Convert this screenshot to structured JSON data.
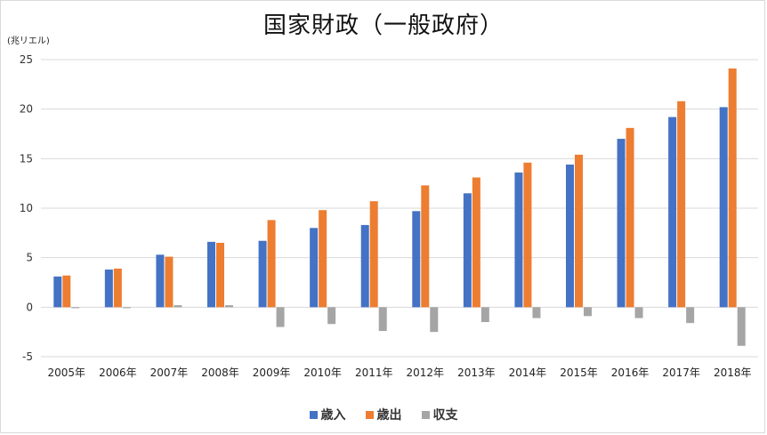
{
  "chart_data": {
    "type": "bar",
    "title": "国家財政（一般政府）",
    "unit_label": "(兆リエル)",
    "categories": [
      "2005年",
      "2006年",
      "2007年",
      "2008年",
      "2009年",
      "2010年",
      "2011年",
      "2012年",
      "2013年",
      "2014年",
      "2015年",
      "2016年",
      "2017年",
      "2018年"
    ],
    "series": [
      {
        "name": "歳入",
        "color": "#4472c4",
        "values": [
          3.1,
          3.8,
          5.3,
          6.6,
          6.7,
          8.0,
          8.3,
          9.7,
          11.5,
          13.6,
          14.4,
          17.0,
          19.2,
          20.2
        ]
      },
      {
        "name": "歳出",
        "color": "#ed7d31",
        "values": [
          3.2,
          3.9,
          5.1,
          6.5,
          8.8,
          9.8,
          10.7,
          12.3,
          13.1,
          14.6,
          15.4,
          18.1,
          20.8,
          24.1
        ]
      },
      {
        "name": "収支",
        "color": "#a5a5a5",
        "values": [
          -0.1,
          -0.1,
          0.2,
          0.2,
          -2.0,
          -1.7,
          -2.4,
          -2.5,
          -1.5,
          -1.1,
          -0.9,
          -1.1,
          -1.6,
          -3.9
        ]
      }
    ],
    "yticks": [
      "25",
      "20",
      "15",
      "10",
      "5",
      "0",
      "-5"
    ],
    "ylim": [
      -5,
      25
    ],
    "grid": true,
    "legend_position": "bottom"
  }
}
